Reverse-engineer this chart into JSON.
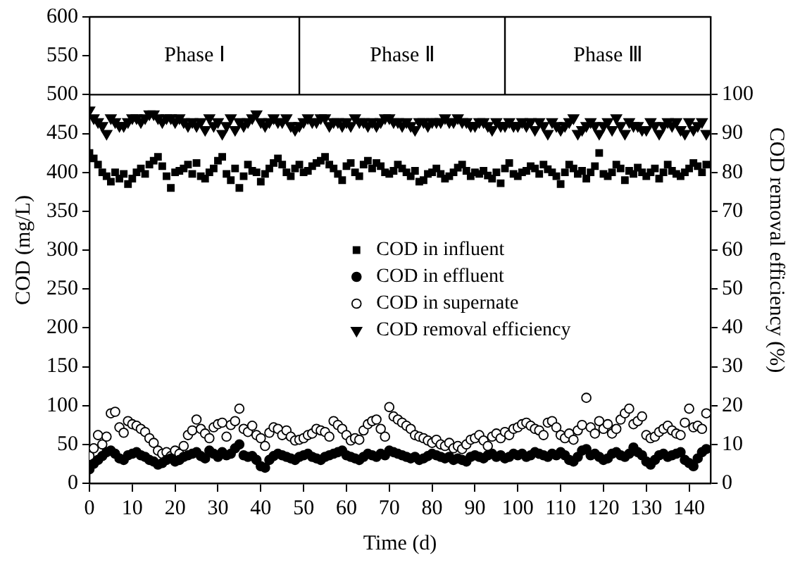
{
  "chart_data": {
    "type": "scatter",
    "xlabel": "Time (d)",
    "ylabel": "COD (mg/L)",
    "y2label": "COD removal efficiency (%)",
    "x": [
      0,
      1,
      2,
      3,
      4,
      5,
      6,
      7,
      8,
      9,
      10,
      11,
      12,
      13,
      14,
      15,
      16,
      17,
      18,
      19,
      20,
      21,
      22,
      23,
      24,
      25,
      26,
      27,
      28,
      29,
      30,
      31,
      32,
      33,
      34,
      35,
      36,
      37,
      38,
      39,
      40,
      41,
      42,
      43,
      44,
      45,
      46,
      47,
      48,
      49,
      50,
      51,
      52,
      53,
      54,
      55,
      56,
      57,
      58,
      59,
      60,
      61,
      62,
      63,
      64,
      65,
      66,
      67,
      68,
      69,
      70,
      71,
      72,
      73,
      74,
      75,
      76,
      77,
      78,
      79,
      80,
      81,
      82,
      83,
      84,
      85,
      86,
      87,
      88,
      89,
      90,
      91,
      92,
      93,
      94,
      95,
      96,
      97,
      98,
      99,
      100,
      101,
      102,
      103,
      104,
      105,
      106,
      107,
      108,
      109,
      110,
      111,
      112,
      113,
      114,
      115,
      116,
      117,
      118,
      119,
      120,
      121,
      122,
      123,
      124,
      125,
      126,
      127,
      128,
      129,
      130,
      131,
      132,
      133,
      134,
      135,
      136,
      137,
      138,
      139,
      140,
      141,
      142,
      143,
      144
    ],
    "series": [
      {
        "name": "COD in influent",
        "marker": "square",
        "color": "#000000",
        "values": [
          425,
          418,
          410,
          400,
          395,
          388,
          400,
          392,
          398,
          385,
          392,
          400,
          405,
          398,
          410,
          415,
          420,
          408,
          395,
          380,
          400,
          402,
          405,
          410,
          398,
          412,
          395,
          392,
          400,
          405,
          415,
          420,
          398,
          390,
          405,
          380,
          395,
          410,
          402,
          400,
          388,
          398,
          405,
          412,
          418,
          410,
          400,
          395,
          405,
          410,
          400,
          402,
          408,
          412,
          415,
          420,
          410,
          405,
          398,
          390,
          408,
          412,
          400,
          395,
          410,
          415,
          405,
          412,
          408,
          400,
          398,
          402,
          410,
          405,
          400,
          395,
          402,
          388,
          390,
          398,
          400,
          405,
          398,
          392,
          395,
          400,
          406,
          410,
          402,
          395,
          400,
          398,
          402,
          396,
          392,
          400,
          386,
          405,
          412,
          398,
          395,
          400,
          402,
          408,
          405,
          398,
          410,
          404,
          400,
          395,
          385,
          400,
          410,
          405,
          398,
          402,
          392,
          400,
          408,
          425,
          398,
          395,
          400,
          410,
          405,
          390,
          402,
          398,
          406,
          400,
          395,
          400,
          405,
          392,
          400,
          410,
          402,
          398,
          395,
          400,
          405,
          412,
          408,
          400,
          410
        ]
      },
      {
        "name": "COD in effluent",
        "marker": "circle",
        "color": "#000000",
        "values": [
          18,
          25,
          30,
          35,
          40,
          42,
          38,
          32,
          30,
          36,
          38,
          40,
          36,
          34,
          30,
          28,
          24,
          26,
          30,
          32,
          28,
          30,
          34,
          36,
          38,
          40,
          35,
          32,
          42,
          38,
          34,
          40,
          36,
          38,
          45,
          50,
          36,
          34,
          35,
          30,
          22,
          20,
          30,
          35,
          38,
          36,
          34,
          32,
          30,
          34,
          36,
          38,
          34,
          32,
          30,
          34,
          36,
          38,
          40,
          42,
          36,
          34,
          32,
          30,
          34,
          38,
          36,
          34,
          38,
          36,
          42,
          40,
          38,
          36,
          34,
          32,
          34,
          30,
          32,
          35,
          38,
          36,
          34,
          32,
          34,
          30,
          32,
          30,
          28,
          34,
          36,
          34,
          32,
          36,
          38,
          34,
          36,
          32,
          34,
          38,
          36,
          38,
          34,
          36,
          40,
          38,
          36,
          34,
          38,
          36,
          40,
          36,
          30,
          28,
          34,
          42,
          44,
          36,
          38,
          34,
          30,
          32,
          38,
          40,
          36,
          34,
          38,
          46,
          40,
          36,
          28,
          24,
          30,
          36,
          38,
          34,
          36,
          38,
          40,
          30,
          26,
          22,
          32,
          40,
          44
        ]
      },
      {
        "name": "COD in supernate",
        "marker": "circle",
        "color": "#ffffff",
        "values": [
          35,
          45,
          62,
          50,
          60,
          90,
          92,
          72,
          65,
          80,
          76,
          74,
          70,
          66,
          58,
          52,
          42,
          38,
          40,
          35,
          42,
          38,
          48,
          62,
          68,
          82,
          70,
          64,
          58,
          72,
          76,
          78,
          60,
          75,
          80,
          96,
          70,
          66,
          74,
          62,
          58,
          48,
          65,
          72,
          70,
          62,
          68,
          60,
          55,
          56,
          58,
          62,
          64,
          70,
          68,
          66,
          60,
          80,
          75,
          70,
          62,
          55,
          58,
          56,
          68,
          76,
          80,
          82,
          70,
          60,
          98,
          86,
          82,
          78,
          74,
          70,
          62,
          60,
          58,
          55,
          52,
          56,
          50,
          48,
          52,
          45,
          48,
          44,
          50,
          56,
          58,
          62,
          55,
          48,
          60,
          64,
          58,
          66,
          62,
          70,
          72,
          76,
          78,
          74,
          70,
          68,
          62,
          78,
          80,
          72,
          62,
          58,
          64,
          56,
          68,
          75,
          110,
          72,
          64,
          80,
          70,
          76,
          64,
          70,
          82,
          90,
          96,
          76,
          80,
          86,
          62,
          58,
          60,
          66,
          70,
          74,
          68,
          64,
          62,
          78,
          96,
          72,
          74,
          70,
          90
        ]
      },
      {
        "name": "COD removal efficiency",
        "marker": "triangle",
        "axis": "y2",
        "color": "#000000",
        "values": [
          96,
          94,
          93,
          92,
          90,
          94,
          93,
          92,
          92,
          93,
          94,
          94,
          93,
          94,
          95,
          95,
          94,
          93,
          94,
          94,
          93,
          94,
          93,
          92,
          93,
          92,
          93,
          91,
          94,
          92,
          93,
          90,
          92,
          94,
          91,
          93,
          92,
          93,
          94,
          95,
          93,
          92,
          93,
          94,
          93,
          93,
          94,
          92,
          91,
          92,
          93,
          94,
          93,
          93,
          94,
          94,
          92,
          93,
          93,
          92,
          93,
          92,
          94,
          93,
          93,
          92,
          93,
          92,
          93,
          94,
          94,
          93,
          93,
          92,
          93,
          92,
          91,
          93,
          93,
          92,
          93,
          93,
          93,
          94,
          93,
          93,
          94,
          93,
          93,
          92,
          92,
          93,
          93,
          92,
          91,
          93,
          92,
          92,
          93,
          92,
          92,
          93,
          92,
          93,
          91,
          93,
          92,
          90,
          93,
          92,
          91,
          92,
          93,
          94,
          90,
          91,
          92,
          93,
          92,
          90,
          92,
          93,
          91,
          94,
          92,
          90,
          93,
          92,
          92,
          91,
          91,
          93,
          92,
          90,
          92,
          93,
          92,
          93,
          91,
          90,
          93,
          91,
          92,
          93,
          90
        ]
      }
    ],
    "xlim": [
      0,
      145
    ],
    "xticks": [
      0,
      10,
      20,
      30,
      40,
      50,
      60,
      70,
      80,
      90,
      100,
      110,
      120,
      130,
      140
    ],
    "ylim": [
      0,
      600
    ],
    "yticks": [
      0,
      50,
      100,
      150,
      200,
      250,
      300,
      350,
      400,
      450,
      500,
      550,
      600
    ],
    "y2lim": [
      0,
      120
    ],
    "y2ticks": [
      0,
      10,
      20,
      30,
      40,
      50,
      60,
      70,
      80,
      90,
      100
    ],
    "ref_lines": [
      {
        "axis": "y",
        "value": 500
      },
      {
        "axis": "x",
        "value": 49
      },
      {
        "axis": "x",
        "value": 97
      }
    ],
    "annotations": [
      "Phase Ⅰ",
      "Phase Ⅱ",
      "Phase Ⅲ"
    ],
    "legend": "right",
    "grid": false
  }
}
